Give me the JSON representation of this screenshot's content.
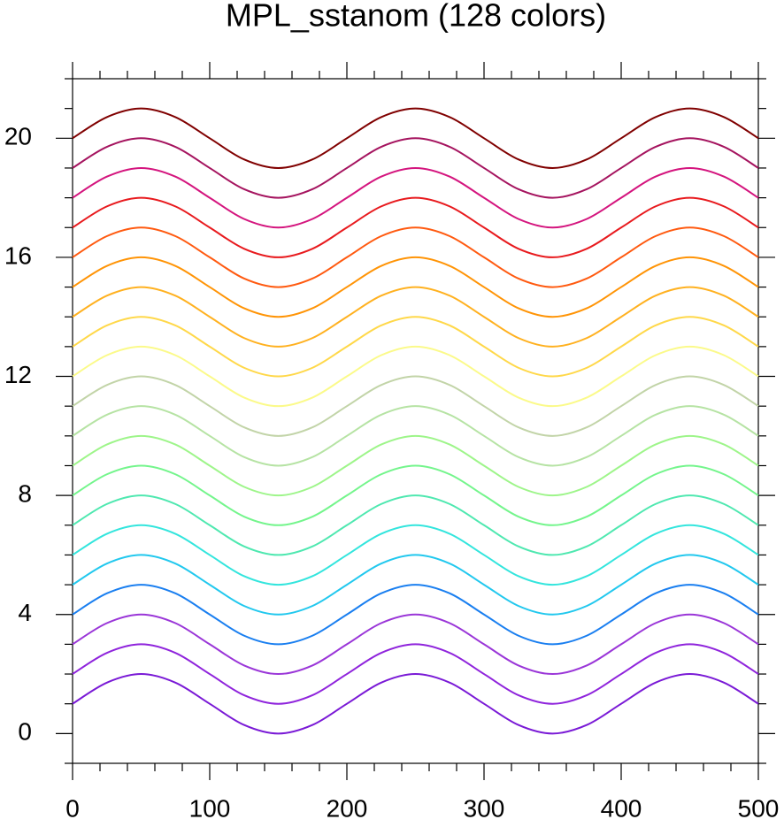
{
  "chart_data": {
    "type": "line",
    "title": "MPL_sstanom (128 colors)",
    "x": [
      0,
      25,
      50,
      75,
      100,
      125,
      150,
      175,
      200,
      225,
      250,
      275,
      300,
      325,
      350,
      375,
      400,
      425,
      450,
      475,
      500
    ],
    "series": [
      {
        "color": "#7a1ad6",
        "values": [
          1,
          1.71,
          2,
          1.71,
          1,
          0.29,
          0,
          0.29,
          1,
          1.71,
          2,
          1.71,
          1,
          0.29,
          0,
          0.29,
          1,
          1.71,
          2,
          1.71,
          1
        ]
      },
      {
        "color": "#8f24dc",
        "values": [
          2,
          2.71,
          3,
          2.71,
          2,
          1.29,
          1,
          1.29,
          2,
          2.71,
          3,
          2.71,
          2,
          1.29,
          1,
          1.29,
          2,
          2.71,
          3,
          2.71,
          2
        ]
      },
      {
        "color": "#9a36d8",
        "values": [
          3,
          3.71,
          4,
          3.71,
          3,
          2.29,
          2,
          2.29,
          3,
          3.71,
          4,
          3.71,
          3,
          2.29,
          2,
          2.29,
          3,
          3.71,
          4,
          3.71,
          3
        ]
      },
      {
        "color": "#1a7ff0",
        "values": [
          4,
          4.71,
          5,
          4.71,
          4,
          3.29,
          3,
          3.29,
          4,
          4.71,
          5,
          4.71,
          4,
          3.29,
          3,
          3.29,
          4,
          4.71,
          5,
          4.71,
          4
        ]
      },
      {
        "color": "#22c8ee",
        "values": [
          5,
          5.71,
          6,
          5.71,
          5,
          4.29,
          4,
          4.29,
          5,
          5.71,
          6,
          5.71,
          5,
          4.29,
          4,
          4.29,
          5,
          5.71,
          6,
          5.71,
          5
        ]
      },
      {
        "color": "#33e5dd",
        "values": [
          6,
          6.71,
          7,
          6.71,
          6,
          5.29,
          5,
          5.29,
          6,
          6.71,
          7,
          6.71,
          6,
          5.29,
          5,
          5.29,
          6,
          6.71,
          7,
          6.71,
          6
        ]
      },
      {
        "color": "#4fe8b0",
        "values": [
          7,
          7.71,
          8,
          7.71,
          7,
          6.29,
          6,
          6.29,
          7,
          7.71,
          8,
          7.71,
          7,
          6.29,
          6,
          6.29,
          7,
          7.71,
          8,
          7.71,
          7
        ]
      },
      {
        "color": "#74f58c",
        "values": [
          8,
          8.71,
          9,
          8.71,
          8,
          7.29,
          7,
          7.29,
          8,
          8.71,
          9,
          8.71,
          8,
          7.29,
          7,
          7.29,
          8,
          8.71,
          9,
          8.71,
          8
        ]
      },
      {
        "color": "#9ef58a",
        "values": [
          9,
          9.71,
          10,
          9.71,
          9,
          8.29,
          8,
          8.29,
          9,
          9.71,
          10,
          9.71,
          9,
          8.29,
          8,
          8.29,
          9,
          9.71,
          10,
          9.71,
          9
        ]
      },
      {
        "color": "#b6e3a4",
        "values": [
          10,
          10.71,
          11,
          10.71,
          10,
          9.29,
          9,
          9.29,
          10,
          10.71,
          11,
          10.71,
          10,
          9.29,
          9,
          9.29,
          10,
          10.71,
          11,
          10.71,
          10
        ]
      },
      {
        "color": "#c2d4a8",
        "values": [
          11,
          11.71,
          12,
          11.71,
          11,
          10.29,
          10,
          10.29,
          11,
          11.71,
          12,
          11.71,
          11,
          10.29,
          10,
          10.29,
          11,
          11.71,
          12,
          11.71,
          11
        ]
      },
      {
        "color": "#fbfa8a",
        "values": [
          12,
          12.71,
          13,
          12.71,
          12,
          11.29,
          11,
          11.29,
          12,
          12.71,
          13,
          12.71,
          12,
          11.29,
          11,
          11.29,
          12,
          12.71,
          13,
          12.71,
          12
        ]
      },
      {
        "color": "#ffd84a",
        "values": [
          13,
          13.71,
          14,
          13.71,
          13,
          12.29,
          12,
          12.29,
          13,
          13.71,
          14,
          13.71,
          13,
          12.29,
          12,
          12.29,
          13,
          13.71,
          14,
          13.71,
          13
        ]
      },
      {
        "color": "#ffb120",
        "values": [
          14,
          14.71,
          15,
          14.71,
          14,
          13.29,
          13,
          13.29,
          14,
          14.71,
          15,
          14.71,
          14,
          13.29,
          13,
          13.29,
          14,
          14.71,
          15,
          14.71,
          14
        ]
      },
      {
        "color": "#ff9406",
        "values": [
          15,
          15.71,
          16,
          15.71,
          15,
          14.29,
          14,
          14.29,
          15,
          15.71,
          16,
          15.71,
          15,
          14.29,
          14,
          14.29,
          15,
          15.71,
          16,
          15.71,
          15
        ]
      },
      {
        "color": "#ff5a10",
        "values": [
          16,
          16.71,
          17,
          16.71,
          16,
          15.29,
          15,
          15.29,
          16,
          16.71,
          17,
          16.71,
          16,
          15.29,
          15,
          15.29,
          16,
          16.71,
          17,
          16.71,
          16
        ]
      },
      {
        "color": "#e81a1e",
        "values": [
          17,
          17.71,
          18,
          17.71,
          17,
          16.29,
          16,
          16.29,
          17,
          17.71,
          18,
          17.71,
          17,
          16.29,
          16,
          16.29,
          17,
          17.71,
          18,
          17.71,
          17
        ]
      },
      {
        "color": "#d4157e",
        "values": [
          18,
          18.71,
          19,
          18.71,
          18,
          17.29,
          17,
          17.29,
          18,
          18.71,
          19,
          18.71,
          18,
          17.29,
          17,
          17.29,
          18,
          18.71,
          19,
          18.71,
          18
        ]
      },
      {
        "color": "#a5145f",
        "values": [
          19,
          19.71,
          20,
          19.71,
          19,
          18.29,
          18,
          18.29,
          19,
          19.71,
          20,
          19.71,
          19,
          18.29,
          18,
          18.29,
          19,
          19.71,
          20,
          19.71,
          19
        ]
      },
      {
        "color": "#800000",
        "values": [
          20,
          20.71,
          21,
          20.71,
          20,
          19.29,
          19,
          19.29,
          20,
          20.71,
          21,
          20.71,
          20,
          19.29,
          19,
          19.29,
          20,
          20.71,
          21,
          20.71,
          20
        ]
      }
    ],
    "xlim": [
      0,
      500
    ],
    "xticks": [
      0,
      100,
      200,
      300,
      400,
      500
    ],
    "ylim": [
      -1,
      22
    ],
    "yticks": [
      0,
      4,
      8,
      12,
      16,
      20
    ]
  }
}
